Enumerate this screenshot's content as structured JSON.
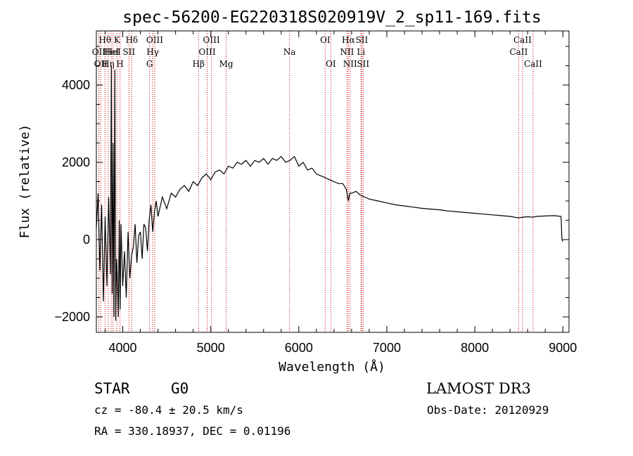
{
  "chart_data": {
    "type": "line",
    "title": "spec-56200-EG220318S020919V_2_sp11-169.fits",
    "xlabel": "Wavelength (Å)",
    "ylabel": "Flux (relative)",
    "xlim": [
      3700,
      9070
    ],
    "ylim": [
      -2400,
      5400
    ],
    "xticks": [
      4000,
      5000,
      6000,
      7000,
      8000,
      9000
    ],
    "yticks": [
      -2000,
      0,
      2000,
      4000
    ],
    "series": [
      {
        "name": "flux",
        "x": [
          3700,
          3720,
          3740,
          3760,
          3780,
          3800,
          3820,
          3840,
          3860,
          3870,
          3880,
          3890,
          3900,
          3910,
          3920,
          3930,
          3940,
          3950,
          3960,
          3970,
          3980,
          4000,
          4020,
          4040,
          4060,
          4080,
          4100,
          4120,
          4140,
          4160,
          4180,
          4200,
          4220,
          4240,
          4260,
          4280,
          4300,
          4320,
          4340,
          4360,
          4380,
          4400,
          4450,
          4500,
          4550,
          4600,
          4650,
          4700,
          4750,
          4800,
          4850,
          4900,
          4950,
          5000,
          5050,
          5100,
          5150,
          5200,
          5250,
          5300,
          5350,
          5400,
          5450,
          5500,
          5550,
          5600,
          5650,
          5700,
          5750,
          5800,
          5850,
          5900,
          5950,
          6000,
          6050,
          6100,
          6150,
          6200,
          6250,
          6300,
          6350,
          6400,
          6450,
          6500,
          6540,
          6563,
          6580,
          6600,
          6650,
          6700,
          6750,
          6800,
          6900,
          7000,
          7100,
          7200,
          7300,
          7400,
          7500,
          7600,
          7700,
          7800,
          7900,
          8000,
          8100,
          8200,
          8300,
          8400,
          8498,
          8542,
          8600,
          8662,
          8700,
          8800,
          8900,
          8980,
          8990,
          9000
        ],
        "y": [
          300,
          1200,
          -800,
          900,
          -1600,
          600,
          -1200,
          1100,
          -900,
          4500,
          -1400,
          2500,
          -2000,
          4400,
          -2100,
          -500,
          -1000,
          -2000,
          500,
          -1800,
          400,
          -1200,
          -300,
          -1500,
          200,
          -1000,
          -400,
          -200,
          400,
          -600,
          100,
          200,
          -500,
          400,
          300,
          -300,
          500,
          900,
          200,
          700,
          1000,
          600,
          1100,
          800,
          1200,
          1100,
          1300,
          1400,
          1250,
          1500,
          1400,
          1600,
          1700,
          1550,
          1750,
          1800,
          1700,
          1900,
          1850,
          2000,
          1950,
          2050,
          1900,
          2050,
          2000,
          2100,
          1950,
          2100,
          2050,
          2150,
          2000,
          2050,
          2150,
          1900,
          2000,
          1800,
          1850,
          1700,
          1650,
          1600,
          1550,
          1500,
          1450,
          1450,
          1300,
          1000,
          1200,
          1200,
          1250,
          1150,
          1100,
          1050,
          1000,
          950,
          900,
          870,
          840,
          810,
          790,
          770,
          740,
          720,
          700,
          680,
          660,
          640,
          620,
          600,
          560,
          580,
          590,
          580,
          600,
          610,
          620,
          600,
          0,
          -50
        ]
      }
    ],
    "emission_lines": [
      {
        "wave": 3727,
        "label": "OII",
        "row": 2
      },
      {
        "wave": 3750,
        "label": "OII",
        "row": 3
      },
      {
        "wave": 3798,
        "label": "Hθ",
        "row": 1
      },
      {
        "wave": 3835,
        "label": "Hη",
        "row": 3
      },
      {
        "wave": 3869,
        "label": "HeI",
        "row": 2
      },
      {
        "wave": 3889,
        "label": "HeI",
        "row": 2
      },
      {
        "wave": 3934,
        "label": "K",
        "row": 1
      },
      {
        "wave": 3969,
        "label": "H",
        "row": 3
      },
      {
        "wave": 4070,
        "label": "SII",
        "row": 2
      },
      {
        "wave": 4102,
        "label": "Hδ",
        "row": 1
      },
      {
        "wave": 4305,
        "label": "G",
        "row": 3
      },
      {
        "wave": 4340,
        "label": "Hγ",
        "row": 2
      },
      {
        "wave": 4363,
        "label": "OIII",
        "row": 1
      },
      {
        "wave": 4861,
        "label": "Hβ",
        "row": 3
      },
      {
        "wave": 4959,
        "label": "OIII",
        "row": 2
      },
      {
        "wave": 5007,
        "label": "OIII",
        "row": 1
      },
      {
        "wave": 5175,
        "label": "Mg",
        "row": 3
      },
      {
        "wave": 5894,
        "label": "Na",
        "row": 2
      },
      {
        "wave": 6300,
        "label": "OI",
        "row": 1
      },
      {
        "wave": 6364,
        "label": "OI",
        "row": 3
      },
      {
        "wave": 6548,
        "label": "NII",
        "row": 2
      },
      {
        "wave": 6563,
        "label": "Hα",
        "row": 1
      },
      {
        "wave": 6583,
        "label": "NII",
        "row": 3
      },
      {
        "wave": 6707,
        "label": "Li",
        "row": 2
      },
      {
        "wave": 6716,
        "label": "SII",
        "row": 1
      },
      {
        "wave": 6731,
        "label": "SII",
        "row": 3
      },
      {
        "wave": 8498,
        "label": "CaII",
        "row": 2
      },
      {
        "wave": 8542,
        "label": "CaII",
        "row": 1
      },
      {
        "wave": 8662,
        "label": "CaII",
        "row": 3
      }
    ],
    "line_color": "#000000",
    "marker_color": "#cc0000"
  },
  "info": {
    "object_class": "STAR",
    "subclass": "G0",
    "survey": "LAMOST DR3",
    "redshift": "cz = -80.4 ± 20.5 km/s",
    "obs_date": "Obs-Date: 20120929",
    "coords": "RA = 330.18937, DEC =    0.01196"
  }
}
